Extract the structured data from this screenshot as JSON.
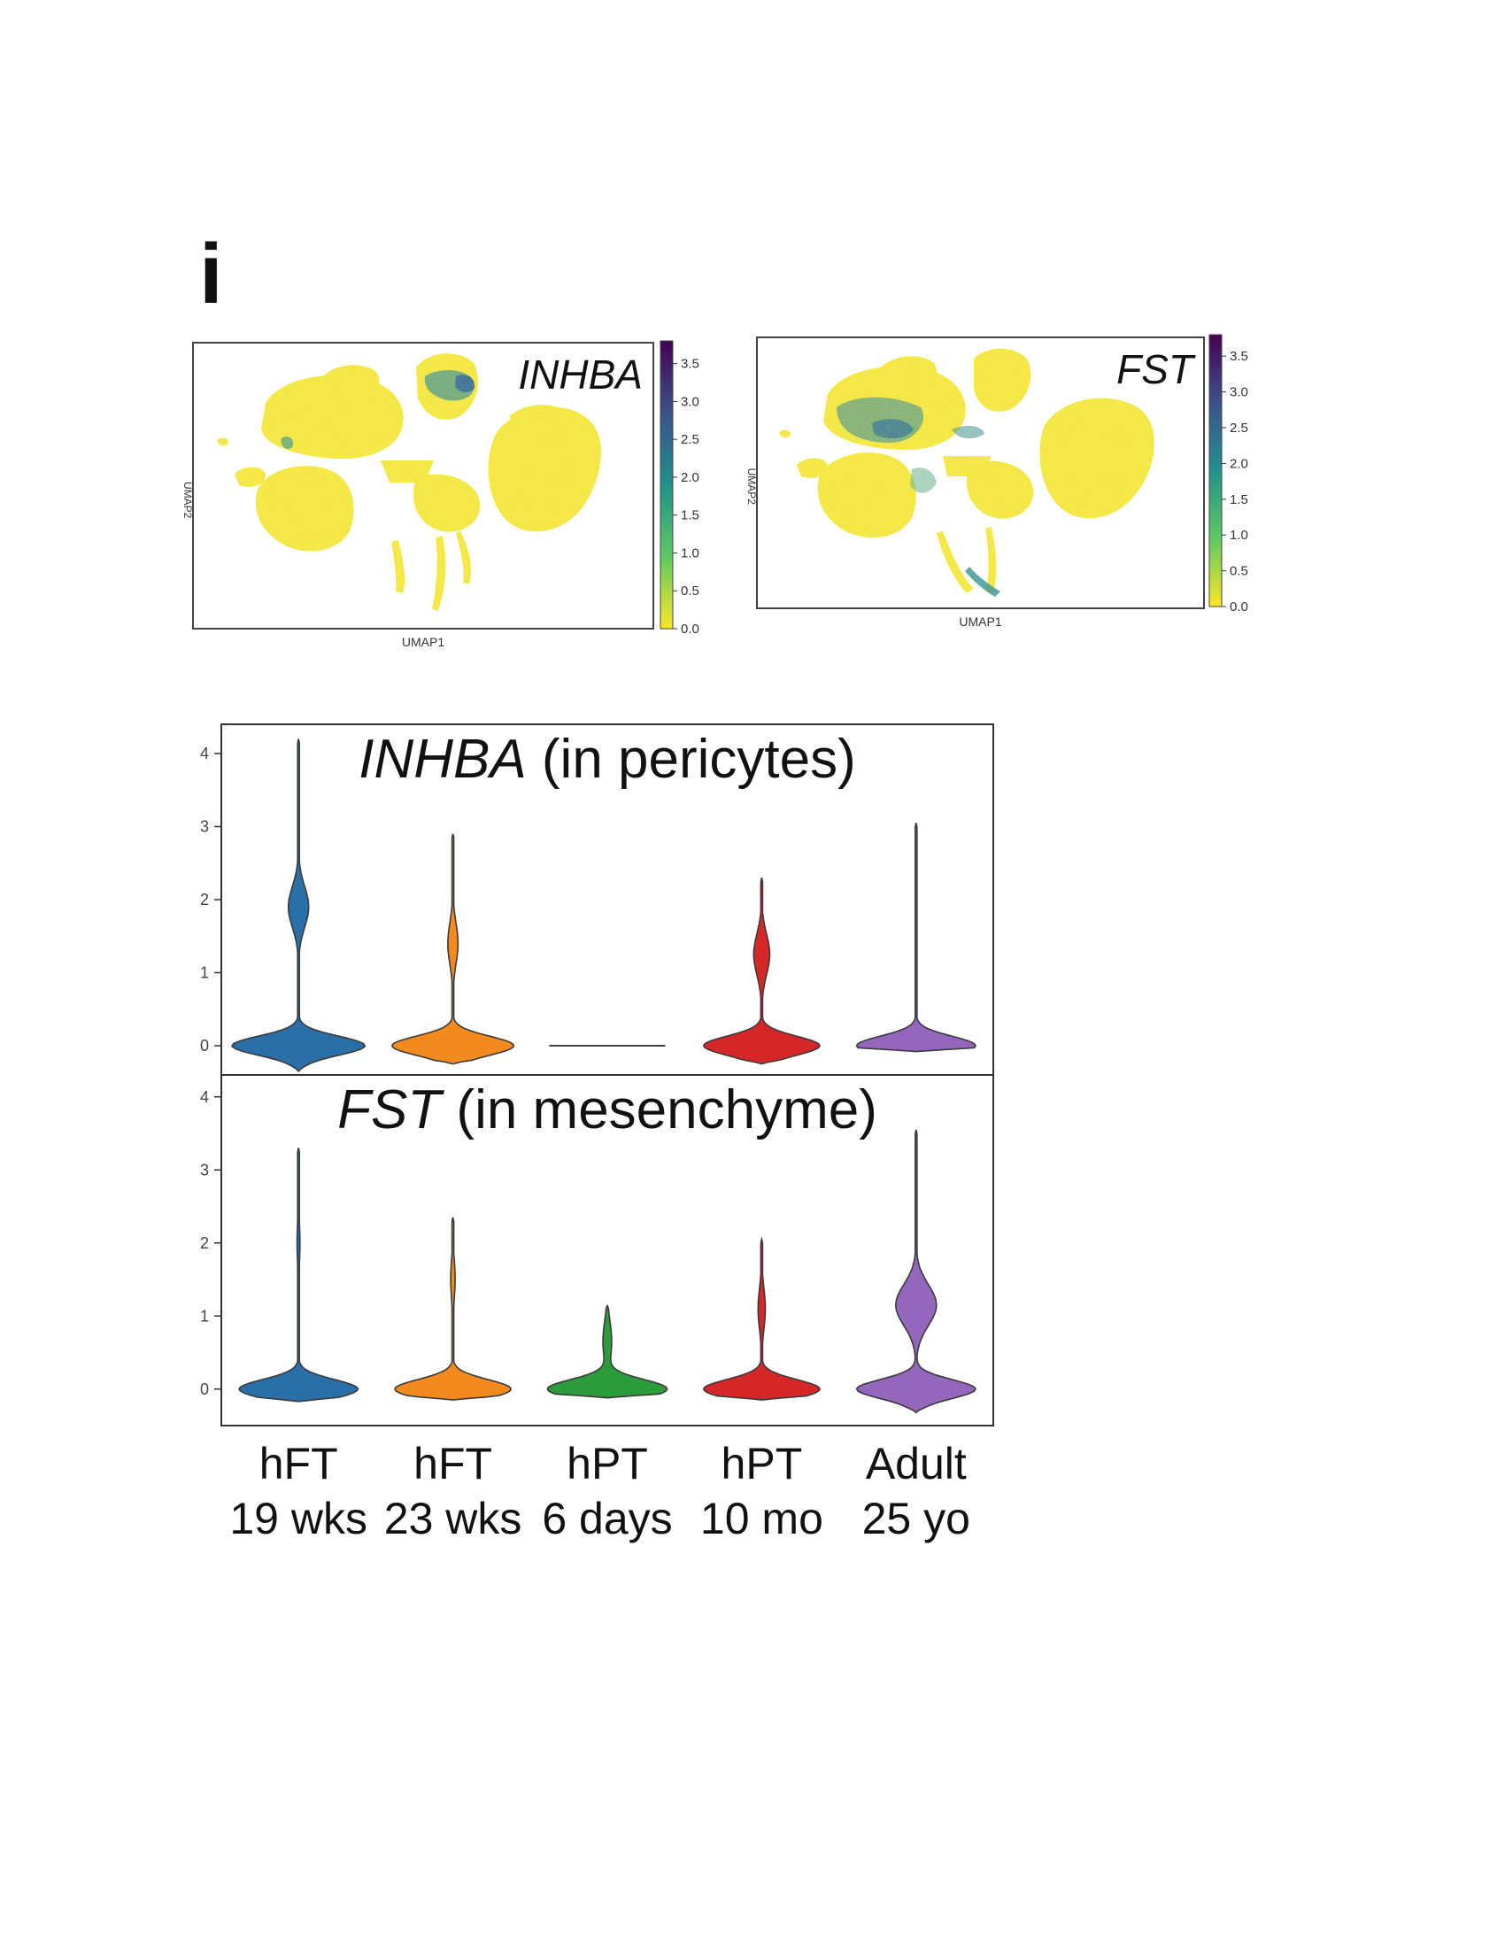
{
  "panel_label": "i",
  "colors": {
    "umap_low": "#f3e533",
    "umap_high": "#3b1b63",
    "series": [
      "#2a6fa8",
      "#f28a1e",
      "#2c9b3b",
      "#d62728",
      "#9467bd"
    ]
  },
  "chart_data": [
    {
      "type": "scatter",
      "title": "INHBA",
      "title_italic": true,
      "xlabel": "UMAP1",
      "ylabel": "UMAP2",
      "colormap": "viridis",
      "colorbar": {
        "ticks": [
          "0.0",
          "0.5",
          "1.0",
          "1.5",
          "2.0",
          "2.5",
          "3.0",
          "3.5"
        ],
        "range": [
          0,
          3.8
        ]
      }
    },
    {
      "type": "scatter",
      "title": "FST",
      "title_italic": true,
      "xlabel": "UMAP1",
      "ylabel": "UMAP2",
      "colormap": "viridis",
      "colorbar": {
        "ticks": [
          "0.0",
          "0.5",
          "1.0",
          "1.5",
          "2.0",
          "2.5",
          "3.0",
          "3.5"
        ],
        "range": [
          0,
          3.8
        ]
      }
    },
    {
      "type": "violin",
      "title_gene": "INHBA",
      "title_rest": " (in pericytes)",
      "ylim": [
        -0.4,
        4.4
      ],
      "yticks": [
        "0",
        "1",
        "2",
        "3",
        "4"
      ],
      "categories": [
        "hFT 19 wks",
        "hFT 23 wks",
        "hPT 6 days",
        "hPT 10 mo",
        "Adult 25 yo"
      ],
      "series": [
        {
          "max": 4.2,
          "min": -0.35,
          "bulb_center": 0,
          "bulb_width": 0.92,
          "mid_center": 1.9,
          "mid_width": 0.14
        },
        {
          "max": 2.9,
          "min": -0.25,
          "bulb_center": 0,
          "bulb_width": 0.84,
          "mid_center": 1.4,
          "mid_width": 0.07
        },
        {
          "max": 0,
          "min": 0,
          "bulb_center": 0,
          "bulb_width": 0.8,
          "mid_center": 0,
          "mid_width": 0
        },
        {
          "max": 2.3,
          "min": -0.25,
          "bulb_center": 0,
          "bulb_width": 0.8,
          "mid_center": 1.25,
          "mid_width": 0.11
        },
        {
          "max": 3.05,
          "min": -0.08,
          "bulb_center": 0,
          "bulb_width": 0.82,
          "mid_center": 1.0,
          "mid_width": 0.01
        }
      ]
    },
    {
      "type": "violin",
      "title_gene": "FST",
      "title_rest": " (in mesenchyme)",
      "ylim": [
        -0.5,
        4.3
      ],
      "yticks": [
        "0",
        "1",
        "2",
        "3",
        "4"
      ],
      "categories": [
        "hFT 19 wks",
        "hFT 23 wks",
        "hPT 6 days",
        "hPT 10 mo",
        "Adult 25 yo"
      ],
      "series": [
        {
          "max": 3.3,
          "min": -0.17,
          "bulb_center": 0,
          "bulb_width": 0.82,
          "mid_center": 2.0,
          "mid_width": 0.02
        },
        {
          "max": 2.35,
          "min": -0.15,
          "bulb_center": 0,
          "bulb_width": 0.8,
          "mid_center": 1.5,
          "mid_width": 0.03
        },
        {
          "max": 1.15,
          "min": -0.12,
          "bulb_center": 0,
          "bulb_width": 0.82,
          "mid_center": 0.65,
          "mid_width": 0.06
        },
        {
          "max": 2.05,
          "min": -0.15,
          "bulb_center": 0,
          "bulb_width": 0.8,
          "mid_center": 1.1,
          "mid_width": 0.05
        },
        {
          "max": 3.55,
          "min": -0.32,
          "bulb_center": 0,
          "bulb_width": 0.82,
          "mid_center": 1.15,
          "mid_width": 0.28
        }
      ]
    }
  ],
  "x_labels": [
    {
      "line1": "hFT",
      "line2": "19 wks"
    },
    {
      "line1": "hFT",
      "line2": "23 wks"
    },
    {
      "line1": "hPT",
      "line2": "6 days"
    },
    {
      "line1": "hPT",
      "line2": "10 mo"
    },
    {
      "line1": "Adult",
      "line2": "25 yo"
    }
  ]
}
